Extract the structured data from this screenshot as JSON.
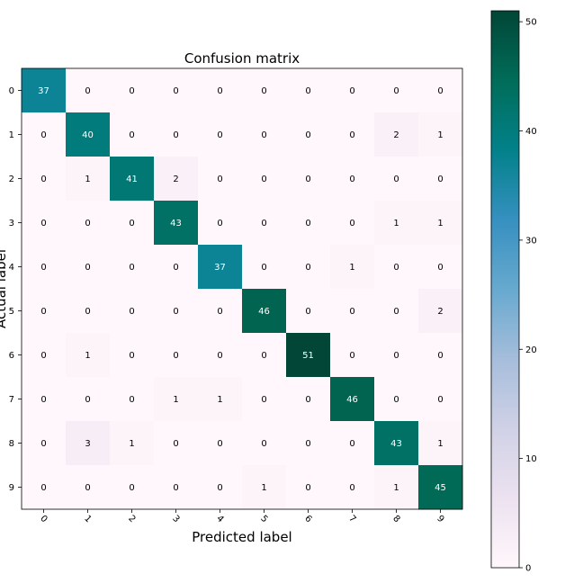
{
  "chart_data": {
    "type": "heatmap",
    "title": "Confusion matrix",
    "xlabel": "Predicted label",
    "ylabel": "Actual label",
    "x_categories": [
      "0",
      "1",
      "2",
      "3",
      "4",
      "5",
      "6",
      "7",
      "8",
      "9"
    ],
    "y_categories": [
      "0",
      "1",
      "2",
      "3",
      "4",
      "5",
      "6",
      "7",
      "8",
      "9"
    ],
    "matrix": [
      [
        37,
        0,
        0,
        0,
        0,
        0,
        0,
        0,
        0,
        0
      ],
      [
        0,
        40,
        0,
        0,
        0,
        0,
        0,
        0,
        2,
        1
      ],
      [
        0,
        1,
        41,
        2,
        0,
        0,
        0,
        0,
        0,
        0
      ],
      [
        0,
        0,
        0,
        43,
        0,
        0,
        0,
        0,
        1,
        1
      ],
      [
        0,
        0,
        0,
        0,
        37,
        0,
        0,
        1,
        0,
        0
      ],
      [
        0,
        0,
        0,
        0,
        0,
        46,
        0,
        0,
        0,
        2
      ],
      [
        0,
        1,
        0,
        0,
        0,
        0,
        51,
        0,
        0,
        0
      ],
      [
        0,
        0,
        0,
        1,
        1,
        0,
        0,
        46,
        0,
        0
      ],
      [
        0,
        3,
        1,
        0,
        0,
        0,
        0,
        0,
        43,
        1
      ],
      [
        0,
        0,
        0,
        0,
        0,
        1,
        0,
        0,
        1,
        45
      ]
    ],
    "colormap": "PuBuGn",
    "colorbar": {
      "min": 0,
      "max": 51,
      "ticks": [
        0,
        10,
        20,
        30,
        40,
        50
      ],
      "colors": [
        "#fff7fb",
        "#ece2f0",
        "#d0d1e6",
        "#a6bddb",
        "#67a9cf",
        "#3690c0",
        "#02818a",
        "#016c59",
        "#014636"
      ]
    },
    "x_tick_rotation": 45
  }
}
